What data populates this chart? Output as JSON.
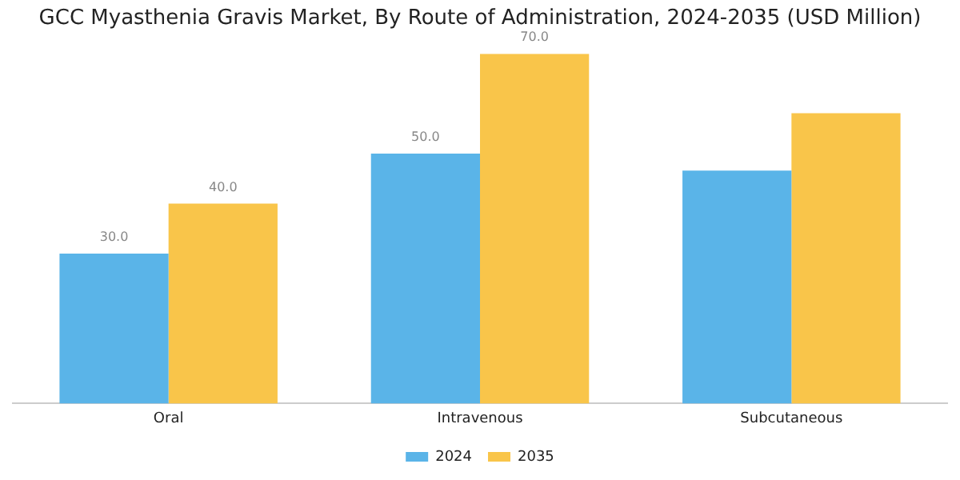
{
  "chart_data": {
    "type": "bar",
    "title": "GCC Myasthenia Gravis Market, By Route of Administration, 2024-2035 (USD Million)",
    "categories": [
      "Oral",
      "Intravenous",
      "Subcutaneous"
    ],
    "series": [
      {
        "name": "2024",
        "color": "#5ab4e8",
        "values": [
          30.0,
          50.0,
          46.6
        ],
        "value_labels": [
          "30.0",
          "50.0",
          null
        ]
      },
      {
        "name": "2035",
        "color": "#f9c54a",
        "values": [
          40.0,
          70.0,
          58.1
        ],
        "value_labels": [
          "40.0",
          "70.0",
          null
        ]
      }
    ],
    "grid": false,
    "legend": "bottom"
  }
}
